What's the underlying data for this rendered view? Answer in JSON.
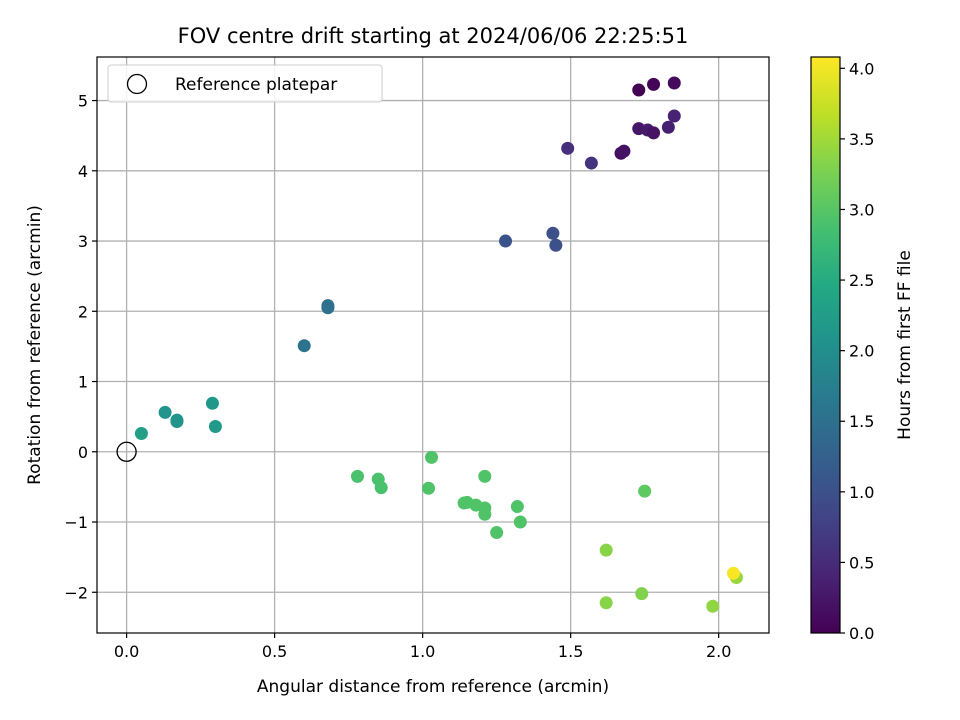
{
  "chart_data": {
    "type": "scatter",
    "title": "FOV centre drift starting at 2024/06/06 22:25:51",
    "xlabel": "Angular distance from reference (arcmin)",
    "ylabel": "Rotation from reference (arcmin)",
    "xlim": [
      -0.1,
      2.17
    ],
    "ylim": [
      -2.58,
      5.62
    ],
    "xticks": [
      0.0,
      0.5,
      1.0,
      1.5,
      2.0
    ],
    "xtick_labels": [
      "0.0",
      "0.5",
      "1.0",
      "1.5",
      "2.0"
    ],
    "yticks": [
      -2,
      -1,
      0,
      1,
      2,
      3,
      4,
      5
    ],
    "ytick_labels": [
      "−2",
      "−1",
      "0",
      "1",
      "2",
      "3",
      "4",
      "5"
    ],
    "grid": true,
    "legend": {
      "position": "top-left",
      "entries": [
        "Reference platepar"
      ]
    },
    "reference_point": {
      "x": 0.0,
      "y": 0.0
    },
    "colorbar": {
      "label": "Hours from first FF file",
      "range": [
        0.0,
        4.08
      ],
      "ticks": [
        0.0,
        0.5,
        1.0,
        1.5,
        2.0,
        2.5,
        3.0,
        3.5,
        4.0
      ],
      "tick_labels": [
        "0.0",
        "0.5",
        "1.0",
        "1.5",
        "2.0",
        "2.5",
        "3.0",
        "3.5",
        "4.0"
      ],
      "colormap": "viridis"
    },
    "series": [
      {
        "points": [
          {
            "x": 1.73,
            "y": 5.15,
            "hours": 0.0
          },
          {
            "x": 1.78,
            "y": 5.23,
            "hours": 0.05
          },
          {
            "x": 1.85,
            "y": 5.25,
            "hours": 0.1
          },
          {
            "x": 1.73,
            "y": 4.6,
            "hours": 0.25
          },
          {
            "x": 1.76,
            "y": 4.58,
            "hours": 0.3
          },
          {
            "x": 1.78,
            "y": 4.54,
            "hours": 0.2
          },
          {
            "x": 1.83,
            "y": 4.62,
            "hours": 0.35
          },
          {
            "x": 1.85,
            "y": 4.78,
            "hours": 0.4
          },
          {
            "x": 1.67,
            "y": 4.25,
            "hours": 0.15
          },
          {
            "x": 1.68,
            "y": 4.28,
            "hours": 0.2
          },
          {
            "x": 1.49,
            "y": 4.32,
            "hours": 0.55
          },
          {
            "x": 1.57,
            "y": 4.11,
            "hours": 0.6
          },
          {
            "x": 1.28,
            "y": 3.0,
            "hours": 1.05
          },
          {
            "x": 1.44,
            "y": 3.11,
            "hours": 1.0
          },
          {
            "x": 1.45,
            "y": 2.94,
            "hours": 1.0
          },
          {
            "x": 0.68,
            "y": 2.08,
            "hours": 1.5
          },
          {
            "x": 0.68,
            "y": 2.05,
            "hours": 1.5
          },
          {
            "x": 0.6,
            "y": 1.51,
            "hours": 1.55
          },
          {
            "x": 0.29,
            "y": 0.69,
            "hours": 2.15
          },
          {
            "x": 0.13,
            "y": 0.56,
            "hours": 2.1
          },
          {
            "x": 0.17,
            "y": 0.45,
            "hours": 2.1
          },
          {
            "x": 0.17,
            "y": 0.43,
            "hours": 2.1
          },
          {
            "x": 0.3,
            "y": 0.36,
            "hours": 2.2
          },
          {
            "x": 0.05,
            "y": 0.26,
            "hours": 2.3
          },
          {
            "x": 0.78,
            "y": -0.35,
            "hours": 2.9
          },
          {
            "x": 0.85,
            "y": -0.39,
            "hours": 2.9
          },
          {
            "x": 0.86,
            "y": -0.51,
            "hours": 2.9
          },
          {
            "x": 1.03,
            "y": -0.08,
            "hours": 2.95
          },
          {
            "x": 1.02,
            "y": -0.52,
            "hours": 2.95
          },
          {
            "x": 1.21,
            "y": -0.35,
            "hours": 2.95
          },
          {
            "x": 1.14,
            "y": -0.73,
            "hours": 2.95
          },
          {
            "x": 1.15,
            "y": -0.72,
            "hours": 2.95
          },
          {
            "x": 1.18,
            "y": -0.76,
            "hours": 2.95
          },
          {
            "x": 1.21,
            "y": -0.8,
            "hours": 2.95
          },
          {
            "x": 1.21,
            "y": -0.89,
            "hours": 2.95
          },
          {
            "x": 1.25,
            "y": -1.15,
            "hours": 2.95
          },
          {
            "x": 1.32,
            "y": -0.78,
            "hours": 2.95
          },
          {
            "x": 1.33,
            "y": -1.0,
            "hours": 2.95
          },
          {
            "x": 1.75,
            "y": -0.56,
            "hours": 3.05
          },
          {
            "x": 1.62,
            "y": -1.4,
            "hours": 3.35
          },
          {
            "x": 1.62,
            "y": -2.15,
            "hours": 3.35
          },
          {
            "x": 1.74,
            "y": -2.02,
            "hours": 3.3
          },
          {
            "x": 1.98,
            "y": -2.2,
            "hours": 3.4
          },
          {
            "x": 2.06,
            "y": -1.79,
            "hours": 3.45
          },
          {
            "x": 2.05,
            "y": -1.73,
            "hours": 4.05
          }
        ]
      }
    ]
  }
}
